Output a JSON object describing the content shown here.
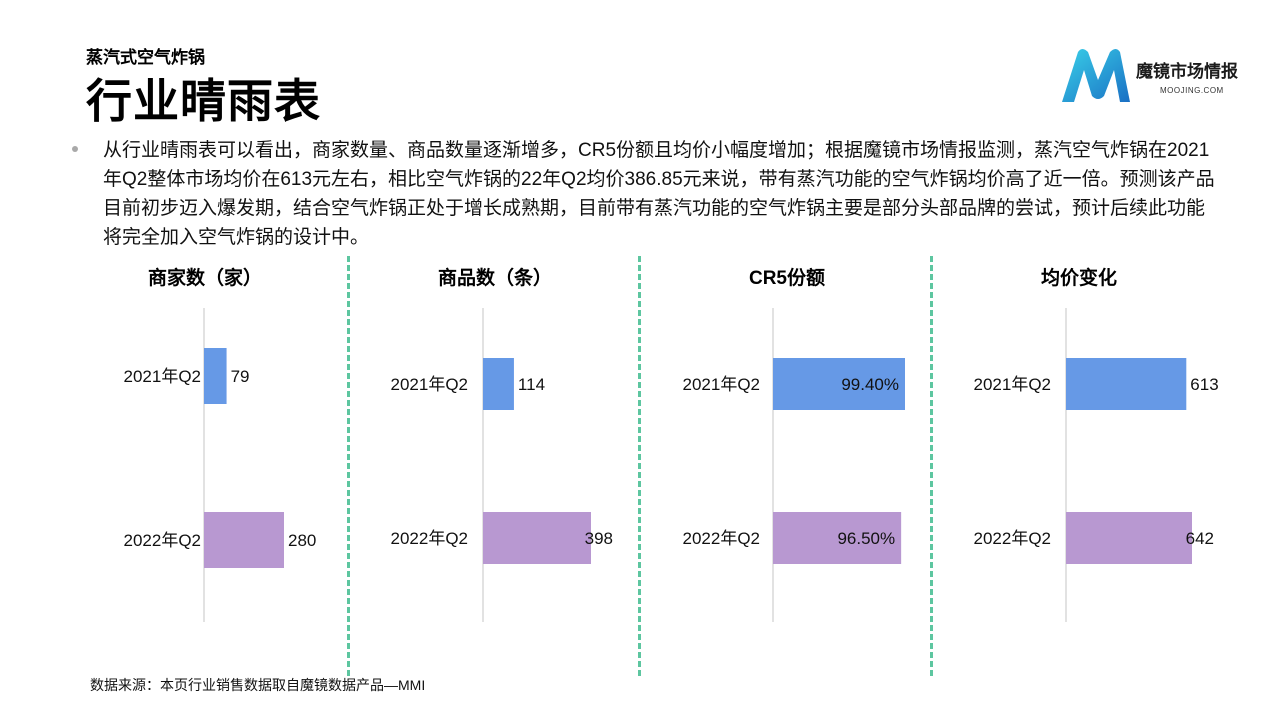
{
  "header": {
    "subtitle": "蒸汽式空气炸锅",
    "title": "行业晴雨表"
  },
  "logo": {
    "name": "魔镜市场情报",
    "domain": "MOOJING.COM",
    "icon": "moojing-m-logo"
  },
  "summary": "从行业晴雨表可以看出，商家数量、商品数量逐渐增多，CR5份额且均价小幅度增加；根据魔镜市场情报监测，蒸汽空气炸锅在2021年Q2整体市场均价在613元左右，相比空气炸锅的22年Q2均价386.85元来说，带有蒸汽功能的空气炸锅均价高了近一倍。预测该产品目前初步迈入爆发期，结合空气炸锅正处于增长成熟期，目前带有蒸汽功能的空气炸锅主要是部分头部品牌的尝试，预计后续此功能将完全加入空气炸锅的设计中。",
  "colors": {
    "q2021": "#6699e6",
    "q2022": "#b898d1",
    "divider": "#5dc6a0",
    "axis": "#d9d9d9"
  },
  "chart_data": [
    {
      "type": "bar",
      "title": "商家数（家）",
      "categories": [
        "2021年Q2",
        "2022年Q2"
      ],
      "values": [
        79,
        280
      ],
      "labels": [
        "79",
        "280"
      ],
      "xlim": [
        0,
        280
      ]
    },
    {
      "type": "bar",
      "title": "商品数（条）",
      "categories": [
        "2021年Q2",
        "2022年Q2"
      ],
      "values": [
        114,
        398
      ],
      "labels": [
        "114",
        "398"
      ],
      "xlim": [
        0,
        398
      ]
    },
    {
      "type": "bar",
      "title": "CR5份额",
      "categories": [
        "2021年Q2",
        "2022年Q2"
      ],
      "values": [
        99.4,
        96.5
      ],
      "labels": [
        "99.40%",
        "96.50%"
      ],
      "xlim": [
        0,
        99.4
      ]
    },
    {
      "type": "bar",
      "title": "均价变化",
      "categories": [
        "2021年Q2",
        "2022年Q2"
      ],
      "values": [
        613,
        642
      ],
      "labels": [
        "613",
        "642"
      ],
      "xlim": [
        0,
        642
      ]
    }
  ],
  "source": "数据来源：本页行业销售数据取自魔镜数据产品—MMI"
}
